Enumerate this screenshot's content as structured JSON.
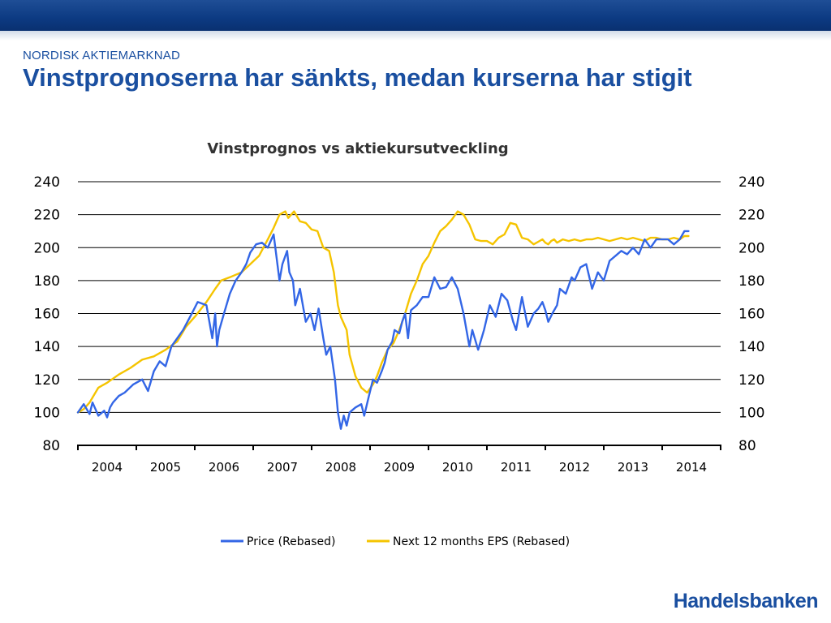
{
  "header": {
    "section": "NORDISK AKTIEMARKNAD",
    "title": "Vinstprognoserna har sänkts, medan kurserna har stigit"
  },
  "brand": {
    "logo_text": "Handelsbanken",
    "color": "#1a4fa0"
  },
  "chart_data": {
    "type": "line",
    "title": "Vinstprognos vs aktiekursutveckling",
    "ylim": [
      80,
      240
    ],
    "yticks": [
      80,
      100,
      120,
      140,
      160,
      180,
      200,
      220,
      240
    ],
    "xlim": [
      2003.5,
      2014.5
    ],
    "xtick_labels": [
      "2004",
      "2005",
      "2006",
      "2007",
      "2008",
      "2009",
      "2010",
      "2011",
      "2012",
      "2013",
      "2014"
    ],
    "grid": true,
    "legend_position": "bottom",
    "series": [
      {
        "name": "Price (Rebased)",
        "color": "#3366e6",
        "x": [
          2003.5,
          2003.6,
          2003.7,
          2003.75,
          2003.85,
          2003.95,
          2004.0,
          2004.05,
          2004.1,
          2004.2,
          2004.3,
          2004.45,
          2004.6,
          2004.7,
          2004.8,
          2004.9,
          2005.0,
          2005.1,
          2005.2,
          2005.3,
          2005.45,
          2005.55,
          2005.7,
          2005.8,
          2005.85,
          2005.88,
          2005.92,
          2006.0,
          2006.1,
          2006.2,
          2006.3,
          2006.38,
          2006.45,
          2006.55,
          2006.65,
          2006.75,
          2006.85,
          2006.95,
          2007.0,
          2007.08,
          2007.12,
          2007.18,
          2007.22,
          2007.3,
          2007.4,
          2007.48,
          2007.55,
          2007.62,
          2007.7,
          2007.75,
          2007.82,
          2007.9,
          2007.95,
          2008.0,
          2008.05,
          2008.1,
          2008.15,
          2008.25,
          2008.35,
          2008.4,
          2008.48,
          2008.55,
          2008.62,
          2008.7,
          2008.75,
          2008.8,
          2008.88,
          2008.92,
          2009.0,
          2009.05,
          2009.1,
          2009.15,
          2009.2,
          2009.3,
          2009.4,
          2009.5,
          2009.6,
          2009.7,
          2009.8,
          2009.9,
          2010.0,
          2010.1,
          2010.2,
          2010.25,
          2010.35,
          2010.45,
          2010.55,
          2010.65,
          2010.75,
          2010.85,
          2010.95,
          2011.0,
          2011.05,
          2011.1,
          2011.2,
          2011.3,
          2011.38,
          2011.45,
          2011.5,
          2011.55,
          2011.62,
          2011.7,
          2011.75,
          2011.85,
          2011.95,
          2012.0,
          2012.1,
          2012.2,
          2012.3,
          2012.4,
          2012.5,
          2012.6,
          2012.7,
          2012.8,
          2012.9,
          2013.0,
          2013.1,
          2013.2,
          2013.3,
          2013.4,
          2013.5,
          2013.6,
          2013.7,
          2013.8,
          2013.88,
          2013.95
        ],
        "y": [
          100,
          105,
          99,
          106,
          98,
          101,
          97,
          103,
          106,
          110,
          112,
          117,
          120,
          113,
          125,
          131,
          128,
          140,
          145,
          150,
          160,
          167,
          165,
          145,
          160,
          140,
          150,
          160,
          172,
          180,
          185,
          190,
          197,
          202,
          203,
          200,
          208,
          180,
          190,
          198,
          185,
          180,
          165,
          175,
          155,
          160,
          150,
          163,
          145,
          135,
          140,
          120,
          100,
          90,
          98,
          92,
          100,
          103,
          105,
          98,
          110,
          120,
          118,
          125,
          130,
          138,
          143,
          150,
          148,
          155,
          160,
          145,
          162,
          165,
          170,
          170,
          182,
          175,
          176,
          182,
          175,
          160,
          140,
          150,
          138,
          150,
          165,
          158,
          172,
          168,
          155,
          150,
          160,
          170,
          152,
          160,
          163,
          167,
          162,
          155,
          160,
          165,
          175,
          172,
          182,
          180,
          188,
          190,
          175,
          185,
          180,
          192,
          195,
          198,
          196,
          200,
          196,
          205,
          200,
          205,
          205,
          205,
          202,
          205,
          210,
          210
        ]
      },
      {
        "name": "Next 12 months EPS (Rebased)",
        "color": "#f5c400",
        "x": [
          2003.5,
          2003.6,
          2003.7,
          2003.85,
          2004.0,
          2004.2,
          2004.4,
          2004.6,
          2004.8,
          2005.0,
          2005.2,
          2005.35,
          2005.5,
          2005.7,
          2005.85,
          2005.95,
          2006.1,
          2006.3,
          2006.45,
          2006.6,
          2006.75,
          2006.85,
          2006.95,
          2007.05,
          2007.1,
          2007.2,
          2007.3,
          2007.4,
          2007.5,
          2007.6,
          2007.7,
          2007.8,
          2007.88,
          2007.95,
          2008.0,
          2008.1,
          2008.15,
          2008.25,
          2008.35,
          2008.45,
          2008.55,
          2008.62,
          2008.7,
          2008.8,
          2008.9,
          2009.0,
          2009.1,
          2009.2,
          2009.3,
          2009.4,
          2009.5,
          2009.6,
          2009.7,
          2009.8,
          2009.9,
          2010.0,
          2010.1,
          2010.2,
          2010.3,
          2010.4,
          2010.5,
          2010.6,
          2010.7,
          2010.8,
          2010.9,
          2011.0,
          2011.1,
          2011.2,
          2011.3,
          2011.35,
          2011.4,
          2011.45,
          2011.5,
          2011.55,
          2011.6,
          2011.65,
          2011.7,
          2011.8,
          2011.9,
          2012.0,
          2012.1,
          2012.2,
          2012.3,
          2012.4,
          2012.5,
          2012.6,
          2012.7,
          2012.8,
          2012.9,
          2013.0,
          2013.1,
          2013.2,
          2013.3,
          2013.4,
          2013.5,
          2013.6,
          2013.7,
          2013.8,
          2013.88,
          2013.95
        ],
        "y": [
          100,
          102,
          106,
          115,
          118,
          123,
          127,
          132,
          134,
          138,
          143,
          152,
          158,
          167,
          175,
          180,
          182,
          185,
          190,
          195,
          205,
          212,
          220,
          222,
          218,
          222,
          216,
          215,
          211,
          210,
          200,
          198,
          185,
          165,
          158,
          150,
          135,
          122,
          115,
          112,
          117,
          122,
          130,
          138,
          142,
          150,
          160,
          172,
          180,
          190,
          195,
          203,
          210,
          213,
          217,
          222,
          220,
          214,
          205,
          204,
          204,
          202,
          206,
          208,
          215,
          214,
          206,
          205,
          202,
          203,
          204,
          205,
          203,
          202,
          204,
          205,
          203,
          205,
          204,
          205,
          204,
          205,
          205,
          206,
          205,
          204,
          205,
          206,
          205,
          206,
          205,
          204,
          206,
          206,
          205,
          205,
          206,
          205,
          207,
          207
        ]
      }
    ]
  }
}
